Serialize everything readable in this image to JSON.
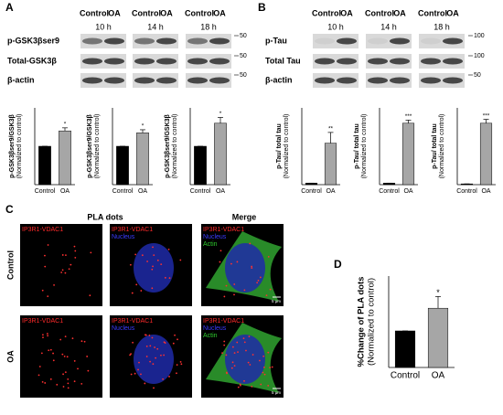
{
  "panels": [
    "A",
    "B",
    "C",
    "D"
  ],
  "blots": [
    {
      "groups": [
        {
          "conditions": [
            "Control",
            "OA"
          ],
          "time": "10 h"
        },
        {
          "conditions": [
            "Control",
            "OA"
          ],
          "time": "14 h"
        },
        {
          "conditions": [
            "Control",
            "OA"
          ],
          "time": "18 h"
        }
      ],
      "rows": [
        "p-GSK3βser9",
        "Total-GSK3β",
        "β-actin"
      ],
      "markers": [
        "50",
        "50",
        "50"
      ]
    },
    {
      "groups": [
        {
          "conditions": [
            "Control",
            "OA"
          ],
          "time": "10 h"
        },
        {
          "conditions": [
            "Control",
            "OA"
          ],
          "time": "14 h"
        },
        {
          "conditions": [
            "Control",
            "OA"
          ],
          "time": "18 h"
        }
      ],
      "rows": [
        "p-Tau",
        "Total Tau",
        "β-actin"
      ],
      "markers": [
        "100",
        "100",
        "50"
      ]
    }
  ],
  "microscopy": {
    "title": "PLA dots",
    "merge_title": "Merge",
    "rows": [
      "Control",
      "OA"
    ],
    "channels": [
      "IP3R1-VDAC1",
      "Nucleus",
      "Actin"
    ],
    "scale": "5 μm"
  },
  "chart_data": [
    {
      "type": "bar",
      "y_label": [
        "p-GSK3βser9/GSK3β",
        "(Normalized to control)"
      ],
      "categories": [
        "Control",
        "OA"
      ],
      "values": [
        1,
        1.4
      ],
      "errors": [
        0,
        0.08
      ],
      "significance": [
        null,
        "*"
      ],
      "colors": [
        "#000000",
        "#a6a6a6"
      ],
      "ylim": [
        0,
        2
      ]
    },
    {
      "type": "bar",
      "y_label": [
        "p-GSK3βser9/GSK3β",
        "(Normalized to control)"
      ],
      "categories": [
        "Control",
        "OA"
      ],
      "values": [
        1,
        1.35
      ],
      "errors": [
        0,
        0.08
      ],
      "significance": [
        null,
        "*"
      ],
      "colors": [
        "#000000",
        "#a6a6a6"
      ],
      "ylim": [
        0,
        2
      ]
    },
    {
      "type": "bar",
      "y_label": [
        "p-GSK3βser9/GSK3β",
        "(Normalized to control)"
      ],
      "categories": [
        "Control",
        "OA"
      ],
      "values": [
        1,
        1.6
      ],
      "errors": [
        0,
        0.15
      ],
      "significance": [
        null,
        "*"
      ],
      "colors": [
        "#000000",
        "#a6a6a6"
      ],
      "ylim": [
        0,
        2
      ]
    },
    {
      "type": "bar",
      "y_label": [
        "p-Tau/ total tau",
        "(Normalized to control)"
      ],
      "categories": [
        "Control",
        "OA"
      ],
      "values": [
        1,
        27
      ],
      "errors": [
        0,
        7
      ],
      "significance": [
        null,
        "**"
      ],
      "colors": [
        "#000000",
        "#a6a6a6"
      ],
      "ylim": [
        0,
        50
      ]
    },
    {
      "type": "bar",
      "y_label": [
        "p-Tau/ total tau",
        "(Normalized to control)"
      ],
      "categories": [
        "Control",
        "OA"
      ],
      "values": [
        1,
        40
      ],
      "errors": [
        0,
        2
      ],
      "significance": [
        null,
        "***"
      ],
      "colors": [
        "#000000",
        "#a6a6a6"
      ],
      "ylim": [
        0,
        50
      ]
    },
    {
      "type": "bar",
      "y_label": [
        "p-Tau/ total tau",
        "(Normalized to control)"
      ],
      "categories": [
        "Control",
        "OA"
      ],
      "values": [
        1,
        80
      ],
      "errors": [
        0,
        5
      ],
      "significance": [
        null,
        "***"
      ],
      "colors": [
        "#000000",
        "#a6a6a6"
      ],
      "ylim": [
        0,
        100
      ]
    },
    {
      "type": "bar",
      "y_label": [
        "%Change of PLA dots",
        "(Normalized to control)"
      ],
      "categories": [
        "Control",
        "OA"
      ],
      "values": [
        100,
        162
      ],
      "errors": [
        0,
        32
      ],
      "significance": [
        null,
        "*"
      ],
      "colors": [
        "#000000",
        "#a6a6a6"
      ],
      "ylim": [
        0,
        250
      ]
    }
  ]
}
